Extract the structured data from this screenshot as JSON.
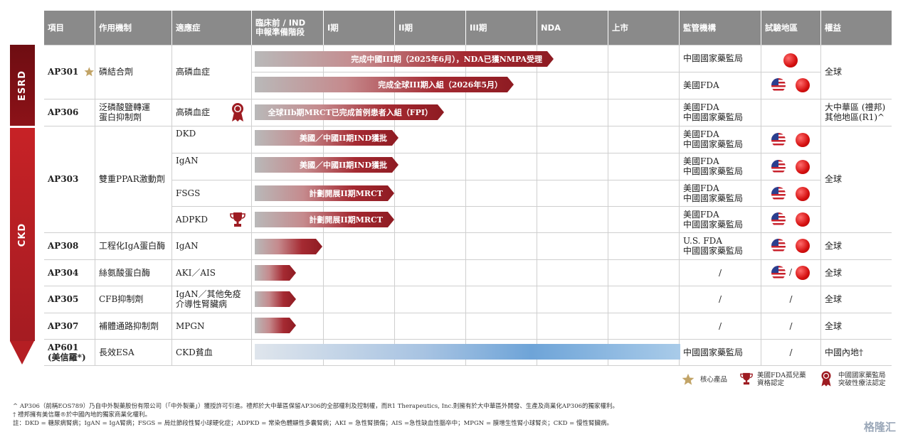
{
  "categories": {
    "esrd": "ESRD",
    "ckd": "CKD"
  },
  "headers": {
    "project": "項目",
    "mechanism": "作用機制",
    "indication": "適應症",
    "preclinical": "臨床前 / IND\n申報準備階段",
    "phase1": "I期",
    "phase2": "II期",
    "phase3": "III期",
    "nda": "NDA",
    "launch": "上市",
    "regulator": "監管機構",
    "region": "試驗地區",
    "rights": "權益"
  },
  "rows": {
    "ap301": {
      "name": "AP301",
      "mechanism": "磷結合劑",
      "indication": "高磷血症",
      "bar1": "完成中國III期（2025年6月），NDA已獲NMPA受理",
      "bar2": "完成全球III期入組（2026年5月）",
      "reg1": "中國國家藥監局",
      "reg2": "美國FDA",
      "rights": "全球"
    },
    "ap306": {
      "name": "AP306",
      "mechanism": "泛磷酸鹽轉運\n蛋白抑制劑",
      "indication": "高磷血症",
      "bar": "全球IIb期MRCT已完成首例患者入組（FPI）",
      "reg": "美國FDA\n中國國家藥監局",
      "rights": "大中華區 (禮邦)\n其他地區(R1)^"
    },
    "ap303": {
      "name": "AP303",
      "mechanism": "雙重PPAR激動劑",
      "rights": "全球",
      "subs": [
        {
          "indication": "DKD",
          "bar": "美國／中國II期IND獲批",
          "reg": "美國FDA\n中國國家藥監局"
        },
        {
          "indication": "IgAN",
          "bar": "美國／中國II期IND獲批",
          "reg": "美國FDA\n中國國家藥監局"
        },
        {
          "indication": "FSGS",
          "bar": "計劃開展II期MRCT",
          "reg": "美國FDA\n中國國家藥監局"
        },
        {
          "indication": "ADPKD",
          "bar": "計劃開展II期MRCT",
          "reg": "美國FDA\n中國國家藥監局"
        }
      ]
    },
    "ap308": {
      "name": "AP308",
      "mechanism": "工程化IgA蛋白酶",
      "indication": "IgAN",
      "reg": "U.S. FDA\n中國國家藥監局",
      "rights": "全球"
    },
    "ap304": {
      "name": "AP304",
      "mechanism": "絲氨酸蛋白酶",
      "indication": "AKI／AIS",
      "reg": "/",
      "region_sep": "/",
      "rights": "全球"
    },
    "ap305": {
      "name": "AP305",
      "mechanism": "CFB抑制劑",
      "indication": "IgAN／其他免疫\n介導性腎臟病",
      "reg": "/",
      "region": "/",
      "rights": "全球"
    },
    "ap307": {
      "name": "AP307",
      "mechanism": "補體通路抑制劑",
      "indication": "MPGN",
      "reg": "/",
      "region": "/",
      "rights": "全球"
    },
    "ap601": {
      "name": "AP601\n(美信羅*)",
      "mechanism": "長效ESA",
      "indication": "CKD貧血",
      "reg": "中國國家藥監局",
      "region": "/",
      "rights": "中國內地†"
    }
  },
  "legend": {
    "core": "核心產品",
    "orphan": "美國FDA孤兒藥\n資格認定",
    "breakthrough": "中國國家藥監局\n突破性療法認定"
  },
  "footnotes": [
    "^ AP306（前稱EOS789）乃自中外製藥股份有限公司（「中外製藥」）獲授許可引進。禮邦於大中華區保留AP306的全部權利及控制權，而R1 Therapeutics, Inc.則擁有於大中華區外開發、生產及商業化AP306的獨家權利。",
    "† 禮邦擁有美信羅®於中國內地的獨家商業化權利。",
    "註：DKD = 糖尿病腎病；IgAN = IgA腎病；FSGS = 局灶節段性腎小球硬化症；ADPKD = 常染色體顯性多囊腎病；AKI = 急性腎損傷；AIS =急性缺血性腦卒中；MPGN = 膜增生性腎小球腎炎；CKD = 慢性腎臟病。"
  ],
  "watermark": "格隆汇",
  "colors": {
    "header": "#8a8a8a",
    "bar": "#9c1f27",
    "blue_bar": "#6ea4d8",
    "esrd": "#7a0f15",
    "ckd": "#c72226"
  }
}
